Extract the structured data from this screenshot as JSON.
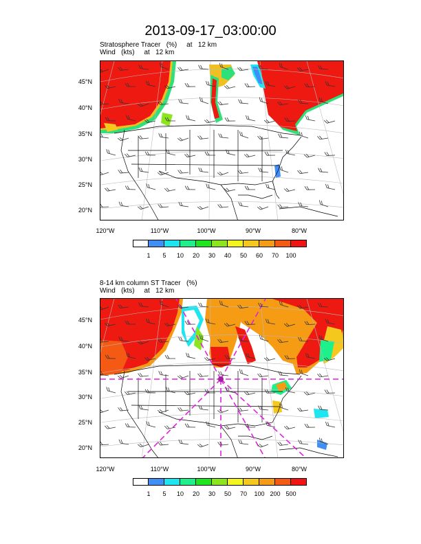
{
  "title": "2013-09-17_03:00:00",
  "panels": [
    {
      "line1": "Stratosphere Tracer   (%)     at   12 km",
      "line2": "Wind   (kts)     at   12 km",
      "lat_labels": [
        "45°N",
        "40°N",
        "35°N",
        "30°N",
        "25°N",
        "20°N"
      ],
      "lon_labels": [
        "120°W",
        "110°W",
        "100°W",
        "90°W",
        "80°W"
      ],
      "colorbar_labels": [
        "1",
        "5",
        "10",
        "20",
        "30",
        "40",
        "50",
        "60",
        "70",
        "100"
      ]
    },
    {
      "line1": "8-14 km column ST Tracer   (%)",
      "line2": "Wind   (kts)     at   12 km",
      "lat_labels": [
        "45°N",
        "40°N",
        "35°N",
        "30°N",
        "25°N",
        "20°N"
      ],
      "lon_labels": [
        "120°W",
        "110°W",
        "100°W",
        "90°W",
        "80°W"
      ],
      "colorbar_labels": [
        "1",
        "5",
        "10",
        "20",
        "30",
        "50",
        "70",
        "100",
        "200",
        "500"
      ]
    }
  ],
  "colorbar_colors": [
    "#ffffff",
    "#3f8ff5",
    "#1ee6f0",
    "#1ef08c",
    "#1ee61e",
    "#8ce61e",
    "#f5f51e",
    "#f5c81e",
    "#f59b14",
    "#f55a14",
    "#f01414"
  ]
}
